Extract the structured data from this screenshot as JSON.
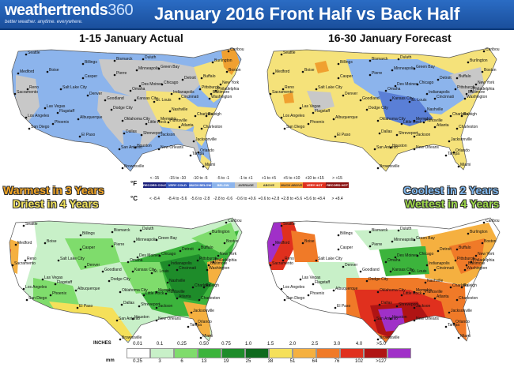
{
  "header": {
    "logo_text_main": "weathertrends",
    "logo_text_num": "360",
    "logo_tagline": "better weather. anytime. everywhere.",
    "title": "January 2016 Front Half vs Back Half"
  },
  "panels": {
    "top_left_title": "1-15 January Actual",
    "top_right_title": "16-30 January Forecast"
  },
  "callouts": {
    "left_line1": "Warmest in 3 Years",
    "left_line2": "Driest in 4 Years",
    "right_line1": "Coolest in 2 Years",
    "right_line2": "Wettest in 4 Years",
    "colors": {
      "warm": "#f5a623",
      "dry": "#f2e35c",
      "cool": "#7fb8f0",
      "wet": "#9ed94a"
    }
  },
  "temp_legend": {
    "unit_f": "°F",
    "unit_c": "°C",
    "f_ranges": [
      "< -15",
      "-15 to -10",
      "-10 to -5",
      "-5 to -1",
      "-1 to +1",
      "+1 to +5",
      "+5 to +10",
      "+10 to +15",
      "> +15"
    ],
    "labels": [
      "RECORD COLD",
      "VERY COLD",
      "MUCH BELOW",
      "BELOW",
      "AVERAGE",
      "ABOVE",
      "MUCH ABOVE",
      "VERY HOT",
      "RECORD HOT"
    ],
    "c_ranges": [
      "< -8.4",
      "-8.4 to -5.6",
      "-5.6 to -2.8",
      "-2.8 to -0.6",
      "-0.6 to +0.6",
      "+0.6 to +2.8",
      "+2.8 to +5.6",
      "+5.6 to +8.4",
      "> +8.4"
    ],
    "colors": [
      "#1a1f7a",
      "#2f4fb5",
      "#5a7fd6",
      "#8cb4ec",
      "#c8c8c8",
      "#f5e27a",
      "#f0a030",
      "#e0301e",
      "#8a1010"
    ]
  },
  "precip_legend": {
    "unit_in": "INCHES",
    "unit_mm": "mm",
    "inches": [
      "0.01",
      "0.1",
      "0.25",
      "0.50",
      "0.75",
      "1.0",
      "1.5",
      "2.0",
      "2.5",
      "3.0",
      "4.0",
      ">5.0"
    ],
    "mm": [
      "0.25",
      "3",
      "6",
      "13",
      "19",
      "25",
      "38",
      "51",
      "64",
      "76",
      "102",
      ">127"
    ],
    "colors": [
      "#ffffff",
      "#c8f0c8",
      "#7fdc6c",
      "#3cb43c",
      "#1e8c2a",
      "#0f6a1e",
      "#f5e05a",
      "#f5b040",
      "#f07a28",
      "#e0301e",
      "#b01414",
      "#a030c8"
    ]
  },
  "map_labels": {
    "cities": [
      "Seattle",
      "Medford",
      "Boise",
      "Reno",
      "Sacramento",
      "Salt Lake City",
      "Las Vegas",
      "Los Angeles",
      "San Diego",
      "Phoenix",
      "Flagstaff",
      "Albuquerque",
      "El Paso",
      "Denver",
      "Casper",
      "Billings",
      "Bismarck",
      "Pierre",
      "Omaha",
      "Goodland",
      "Dodge City",
      "Oklahoma City",
      "Dallas",
      "Houston",
      "San Antonio",
      "Brownsville",
      "New Orleans",
      "Jackson",
      "Little Rock",
      "Memphis",
      "Nashville",
      "Atlanta",
      "Tampa",
      "Orlando",
      "Miami",
      "Jacksonville",
      "Charleston",
      "Raleigh",
      "Washington",
      "Philadelphia",
      "New York",
      "Boston",
      "Burlington",
      "Caribou",
      "Buffalo",
      "Detroit",
      "Chicago",
      "Minneapolis",
      "Duluth",
      "Green Bay",
      "Des Moines",
      "Kansas City",
      "St. Louis",
      "Indianapolis",
      "Pittsburgh",
      "Charlotte",
      "Cincinnati",
      "Huntsville",
      "Shreveport",
      "Baltimore"
    ]
  }
}
